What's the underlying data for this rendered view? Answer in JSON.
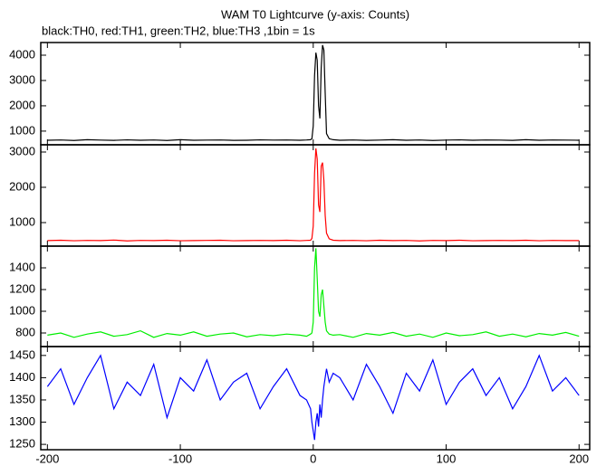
{
  "chart_data": [
    {
      "type": "line",
      "title": "WAM T0 Lightcurve (y-axis: Counts)",
      "subtitle": "black:TH0, red:TH1, green:TH2, blue:TH3 ,1bin = 1s",
      "x": [
        -200,
        -190,
        -180,
        -170,
        -160,
        -150,
        -140,
        -130,
        -120,
        -110,
        -100,
        -90,
        -80,
        -70,
        -60,
        -50,
        -40,
        -30,
        -20,
        -10,
        -5,
        -2,
        -1,
        0,
        1,
        2,
        3,
        4,
        5,
        6,
        7,
        8,
        9,
        10,
        12,
        15,
        20,
        30,
        40,
        50,
        60,
        70,
        80,
        90,
        100,
        110,
        120,
        130,
        140,
        150,
        160,
        170,
        180,
        190,
        200
      ],
      "series": [
        {
          "color": "#000000",
          "values": [
            640,
            650,
            630,
            660,
            645,
            635,
            655,
            640,
            650,
            630,
            660,
            640,
            645,
            650,
            635,
            640,
            655,
            645,
            650,
            640,
            650,
            660,
            700,
            1200,
            3200,
            4100,
            3800,
            2000,
            1500,
            3500,
            4400,
            4200,
            2500,
            900,
            700,
            660,
            640,
            650,
            635,
            645,
            660,
            640,
            650,
            630,
            645,
            655,
            640,
            650,
            645,
            635,
            660,
            640,
            650,
            645,
            640
          ]
        }
      ],
      "xlim": [
        -205,
        208
      ],
      "ylim": [
        460,
        4500
      ],
      "yticks": [
        1000,
        2000,
        3000,
        4000
      ]
    },
    {
      "type": "line",
      "x": [
        -200,
        -190,
        -180,
        -170,
        -160,
        -150,
        -140,
        -130,
        -120,
        -110,
        -100,
        -90,
        -80,
        -70,
        -60,
        -50,
        -40,
        -30,
        -20,
        -10,
        -5,
        -2,
        -1,
        0,
        1,
        2,
        3,
        4,
        5,
        6,
        7,
        8,
        9,
        10,
        12,
        15,
        20,
        30,
        40,
        50,
        60,
        70,
        80,
        90,
        100,
        110,
        120,
        130,
        140,
        150,
        160,
        170,
        180,
        190,
        200
      ],
      "series": [
        {
          "color": "#ff0000",
          "values": [
            490,
            500,
            485,
            495,
            490,
            505,
            480,
            495,
            490,
            500,
            485,
            490,
            495,
            500,
            485,
            490,
            495,
            490,
            500,
            485,
            495,
            500,
            550,
            900,
            2400,
            3100,
            2800,
            1500,
            1300,
            2600,
            2700,
            2200,
            1200,
            700,
            540,
            500,
            490,
            495,
            485,
            500,
            490,
            495,
            480,
            495,
            490,
            500,
            485,
            490,
            495,
            490,
            500,
            485,
            495,
            490,
            490
          ]
        }
      ],
      "xlim": [
        -205,
        208
      ],
      "ylim": [
        333,
        3205
      ],
      "yticks": [
        1000,
        2000,
        3000
      ]
    },
    {
      "type": "line",
      "x": [
        -200,
        -190,
        -180,
        -170,
        -160,
        -150,
        -140,
        -130,
        -120,
        -110,
        -100,
        -90,
        -80,
        -70,
        -60,
        -50,
        -40,
        -30,
        -20,
        -10,
        -5,
        -2,
        -1,
        0,
        1,
        2,
        3,
        4,
        5,
        6,
        7,
        8,
        9,
        10,
        12,
        15,
        20,
        30,
        40,
        50,
        60,
        70,
        80,
        90,
        100,
        110,
        120,
        130,
        140,
        150,
        160,
        170,
        180,
        190,
        200
      ],
      "series": [
        {
          "color": "#00ee00",
          "values": [
            780,
            800,
            760,
            790,
            810,
            770,
            785,
            820,
            760,
            795,
            780,
            810,
            770,
            790,
            800,
            765,
            785,
            775,
            790,
            780,
            770,
            790,
            800,
            900,
            1400,
            1580,
            1300,
            1000,
            950,
            1150,
            1200,
            1050,
            900,
            820,
            790,
            780,
            785,
            760,
            795,
            780,
            805,
            770,
            790,
            760,
            800,
            775,
            785,
            810,
            770,
            790,
            765,
            795,
            780,
            805,
            770
          ]
        }
      ],
      "xlim": [
        -205,
        208
      ],
      "ylim": [
        675,
        1600
      ],
      "yticks": [
        800,
        1000,
        1200,
        1400
      ]
    },
    {
      "type": "line",
      "x": [
        -200,
        -190,
        -180,
        -170,
        -160,
        -150,
        -140,
        -130,
        -120,
        -110,
        -100,
        -90,
        -80,
        -70,
        -60,
        -50,
        -40,
        -30,
        -20,
        -10,
        -5,
        -2,
        -1,
        0,
        1,
        2,
        3,
        4,
        5,
        6,
        7,
        8,
        9,
        10,
        12,
        15,
        20,
        30,
        40,
        50,
        60,
        70,
        80,
        90,
        100,
        110,
        120,
        130,
        140,
        150,
        160,
        170,
        180,
        190,
        200
      ],
      "series": [
        {
          "color": "#0000ff",
          "values": [
            1380,
            1420,
            1340,
            1400,
            1450,
            1330,
            1390,
            1360,
            1430,
            1310,
            1400,
            1370,
            1440,
            1350,
            1390,
            1410,
            1330,
            1380,
            1420,
            1360,
            1350,
            1330,
            1300,
            1280,
            1260,
            1300,
            1320,
            1290,
            1340,
            1310,
            1350,
            1380,
            1400,
            1420,
            1390,
            1410,
            1400,
            1350,
            1430,
            1380,
            1320,
            1410,
            1370,
            1440,
            1340,
            1390,
            1420,
            1360,
            1400,
            1330,
            1380,
            1450,
            1370,
            1400,
            1360
          ]
        }
      ],
      "xlim": [
        -205,
        208
      ],
      "ylim": [
        1238,
        1470
      ],
      "yticks": [
        1250,
        1300,
        1350,
        1400,
        1450
      ],
      "xticks": [
        -200,
        -100,
        0,
        100,
        200
      ]
    }
  ]
}
